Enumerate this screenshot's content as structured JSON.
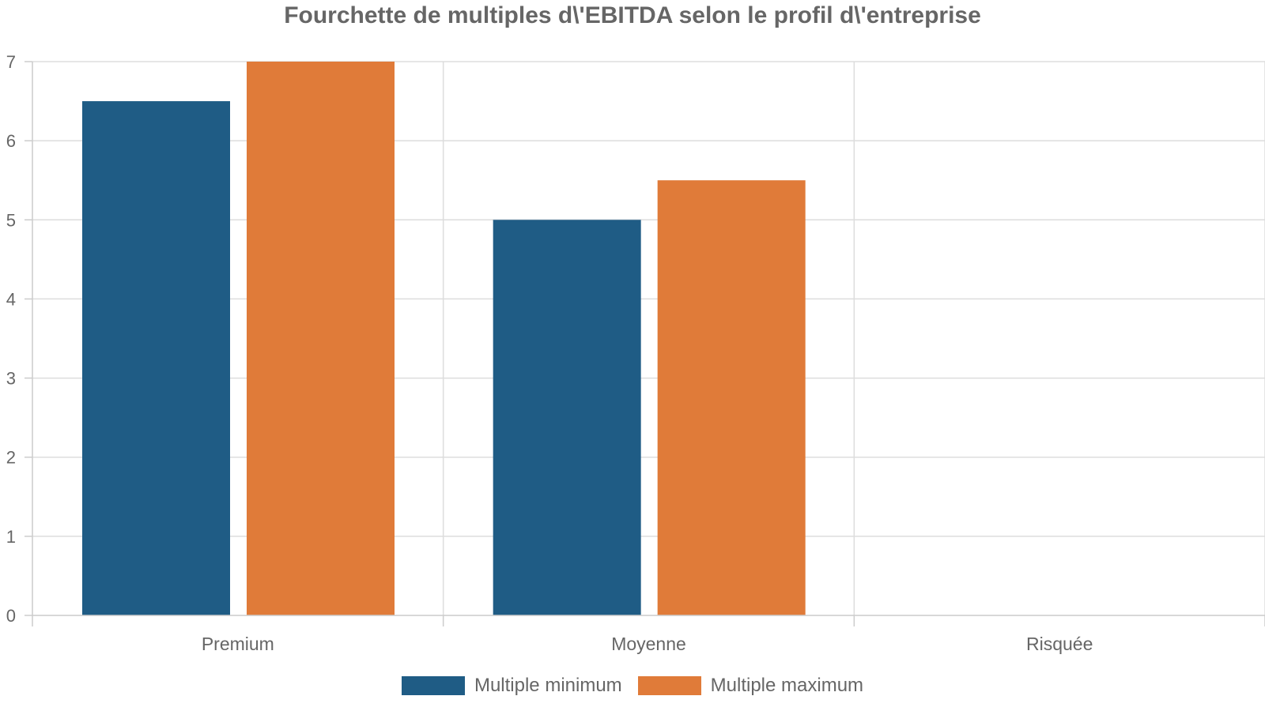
{
  "chart_data": {
    "type": "bar",
    "title": "Fourchette de multiples d\\'EBITDA selon le profil d\\'entreprise",
    "categories": [
      "Premium",
      "Moyenne",
      "Risquée"
    ],
    "series": [
      {
        "name": "Multiple minimum",
        "values": [
          6.5,
          5,
          null
        ],
        "color": "#1f5c85"
      },
      {
        "name": "Multiple maximum",
        "values": [
          7,
          5.5,
          null
        ],
        "color": "#e07b39"
      }
    ],
    "xlabel": "",
    "ylabel": "",
    "ylim": [
      0,
      7
    ],
    "yticks": [
      0,
      1,
      2,
      3,
      4,
      5,
      6,
      7
    ],
    "grid": true,
    "legend_position": "bottom"
  }
}
